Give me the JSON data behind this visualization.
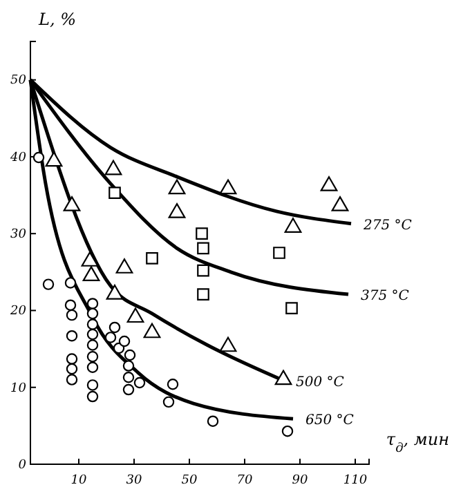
{
  "chart_data": {
    "type": "scatter",
    "xlabel": "τ$_{д}$, мин",
    "ylabel": "L, %",
    "xlim": [
      -7.5,
      115
    ],
    "ylim": [
      0,
      55
    ],
    "xticks": [
      10,
      30,
      50,
      70,
      90,
      110
    ],
    "yticks": [
      0,
      10,
      20,
      30,
      40,
      50
    ],
    "grid": false,
    "series": [
      {
        "marker": "triangle",
        "color": "#000000",
        "x": [
          22.5,
          45.5,
          45.5,
          64,
          100.5,
          104.5,
          87.5
        ],
        "values": [
          38.3,
          35.8,
          32.7,
          35.8,
          36.2,
          33.6,
          30.8
        ]
      },
      {
        "marker": "square",
        "color": "#000000",
        "x": [
          23,
          54.5,
          55,
          36.5,
          55,
          55,
          82.5,
          87
        ],
        "values": [
          35.3,
          30,
          28.1,
          26.8,
          25.2,
          22.1,
          27.5,
          20.3
        ]
      },
      {
        "marker": "triangle",
        "color": "#000000",
        "x": [
          1,
          7.5,
          14,
          14.5,
          26.5,
          23,
          30.5,
          36.5,
          64,
          84
        ],
        "values": [
          39.4,
          33.6,
          26.4,
          24.5,
          25.5,
          22.1,
          19.1,
          17.1,
          15.3,
          11
        ]
      },
      {
        "marker": "circle",
        "color": "#000000",
        "x": [
          -4.5,
          -1,
          7,
          7,
          7.5,
          7.5,
          7.5,
          7.5,
          7.5,
          15,
          15,
          15,
          15,
          15,
          15,
          15,
          15,
          15,
          21.5,
          23,
          24.5,
          26.5,
          28.5,
          28,
          28,
          28,
          32,
          42.5,
          44,
          58.5,
          85.5
        ],
        "values": [
          39.9,
          23.4,
          23.6,
          20.7,
          19.4,
          16.7,
          13.7,
          12.4,
          11,
          20.9,
          19.6,
          18.2,
          16.9,
          15.5,
          14,
          12.6,
          10.3,
          8.8,
          16.5,
          17.8,
          15.1,
          16,
          14.2,
          12.8,
          11.3,
          9.7,
          10.6,
          8.1,
          10.4,
          5.6,
          4.3
        ]
      },
      {
        "type": "line",
        "line_style": "solid",
        "color": "#000000",
        "x": [
          -7.5,
          21.5,
          45.5,
          81.5,
          108.5
        ],
        "values": [
          50,
          41.2,
          37.4,
          32.9,
          31.3
        ]
      },
      {
        "type": "line",
        "line_style": "solid",
        "color": "#000000",
        "x": [
          -7.5,
          21.5,
          45.5,
          65,
          107.5
        ],
        "values": [
          50,
          36.5,
          28.1,
          25,
          22.1
        ]
      },
      {
        "type": "line",
        "line_style": "solid",
        "color": "#000000",
        "x": [
          -7.5,
          21.5,
          36.5,
          56.5,
          84
        ],
        "values": [
          50,
          23.2,
          19.6,
          15.5,
          10.9
        ]
      },
      {
        "type": "line",
        "line_style": "solid",
        "color": "#000000",
        "x": [
          -7.5,
          -2,
          15,
          31.5,
          51.5,
          87.5
        ],
        "values": [
          50,
          36.5,
          19.1,
          11.9,
          7.9,
          5.9
        ]
      }
    ],
    "annotations": [
      {
        "text": "275 °C",
        "x": 108.5,
        "y": 31.3
      },
      {
        "text": "375 °C",
        "x": 107.5,
        "y": 22.1
      },
      {
        "text": "500 °C",
        "x": 84,
        "y": 10.9
      },
      {
        "text": "650 °C",
        "x": 87.5,
        "y": 5.9
      }
    ]
  }
}
